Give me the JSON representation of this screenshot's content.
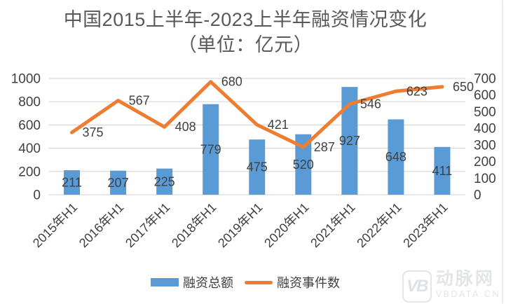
{
  "title": {
    "line1": "中国2015上半年-2023上半年融资情况变化",
    "line2": "（单位：亿元）"
  },
  "chart_data": {
    "type": "bar",
    "subtype": "combo-bar-line",
    "title": "中国2015上半年-2023上半年融资情况变化（单位：亿元）",
    "categories": [
      "2015年H1",
      "2016年H1",
      "2017年H1",
      "2018年H1",
      "2019年H1",
      "2020年H1",
      "2021年H1",
      "2022年H1",
      "2023年H1"
    ],
    "series": [
      {
        "name": "融资总额",
        "type": "bar",
        "axis": "left",
        "color": "#5B9BD5",
        "values": [
          211,
          207,
          225,
          779,
          475,
          520,
          927,
          648,
          411
        ],
        "label_position": "inside-center"
      },
      {
        "name": "融资事件数",
        "type": "line",
        "axis": "right",
        "color": "#ED7D31",
        "values": [
          375,
          567,
          408,
          680,
          421,
          287,
          546,
          623,
          650
        ],
        "label_position": "right"
      }
    ],
    "left_axis": {
      "min": 0,
      "max": 1000,
      "step": 200,
      "ticks": [
        0,
        200,
        400,
        600,
        800,
        1000
      ]
    },
    "right_axis": {
      "min": 0,
      "max": 700,
      "step": 100,
      "ticks": [
        0,
        100,
        200,
        300,
        400,
        500,
        600,
        700
      ]
    },
    "grid": true,
    "legend_position": "bottom",
    "x_label_rotation": -45
  },
  "legend": {
    "bar_label": "融资总额",
    "line_label": "融资事件数"
  },
  "watermark": {
    "monogram": "VB",
    "brand": "动脉网",
    "domain": "VBDATA.CN"
  },
  "colors": {
    "bar": "#5B9BD5",
    "line": "#ED7D31",
    "grid": "#D9D9D9",
    "title_text": "#595959",
    "label_text": "#404040",
    "watermark": "#E3E5E8"
  }
}
